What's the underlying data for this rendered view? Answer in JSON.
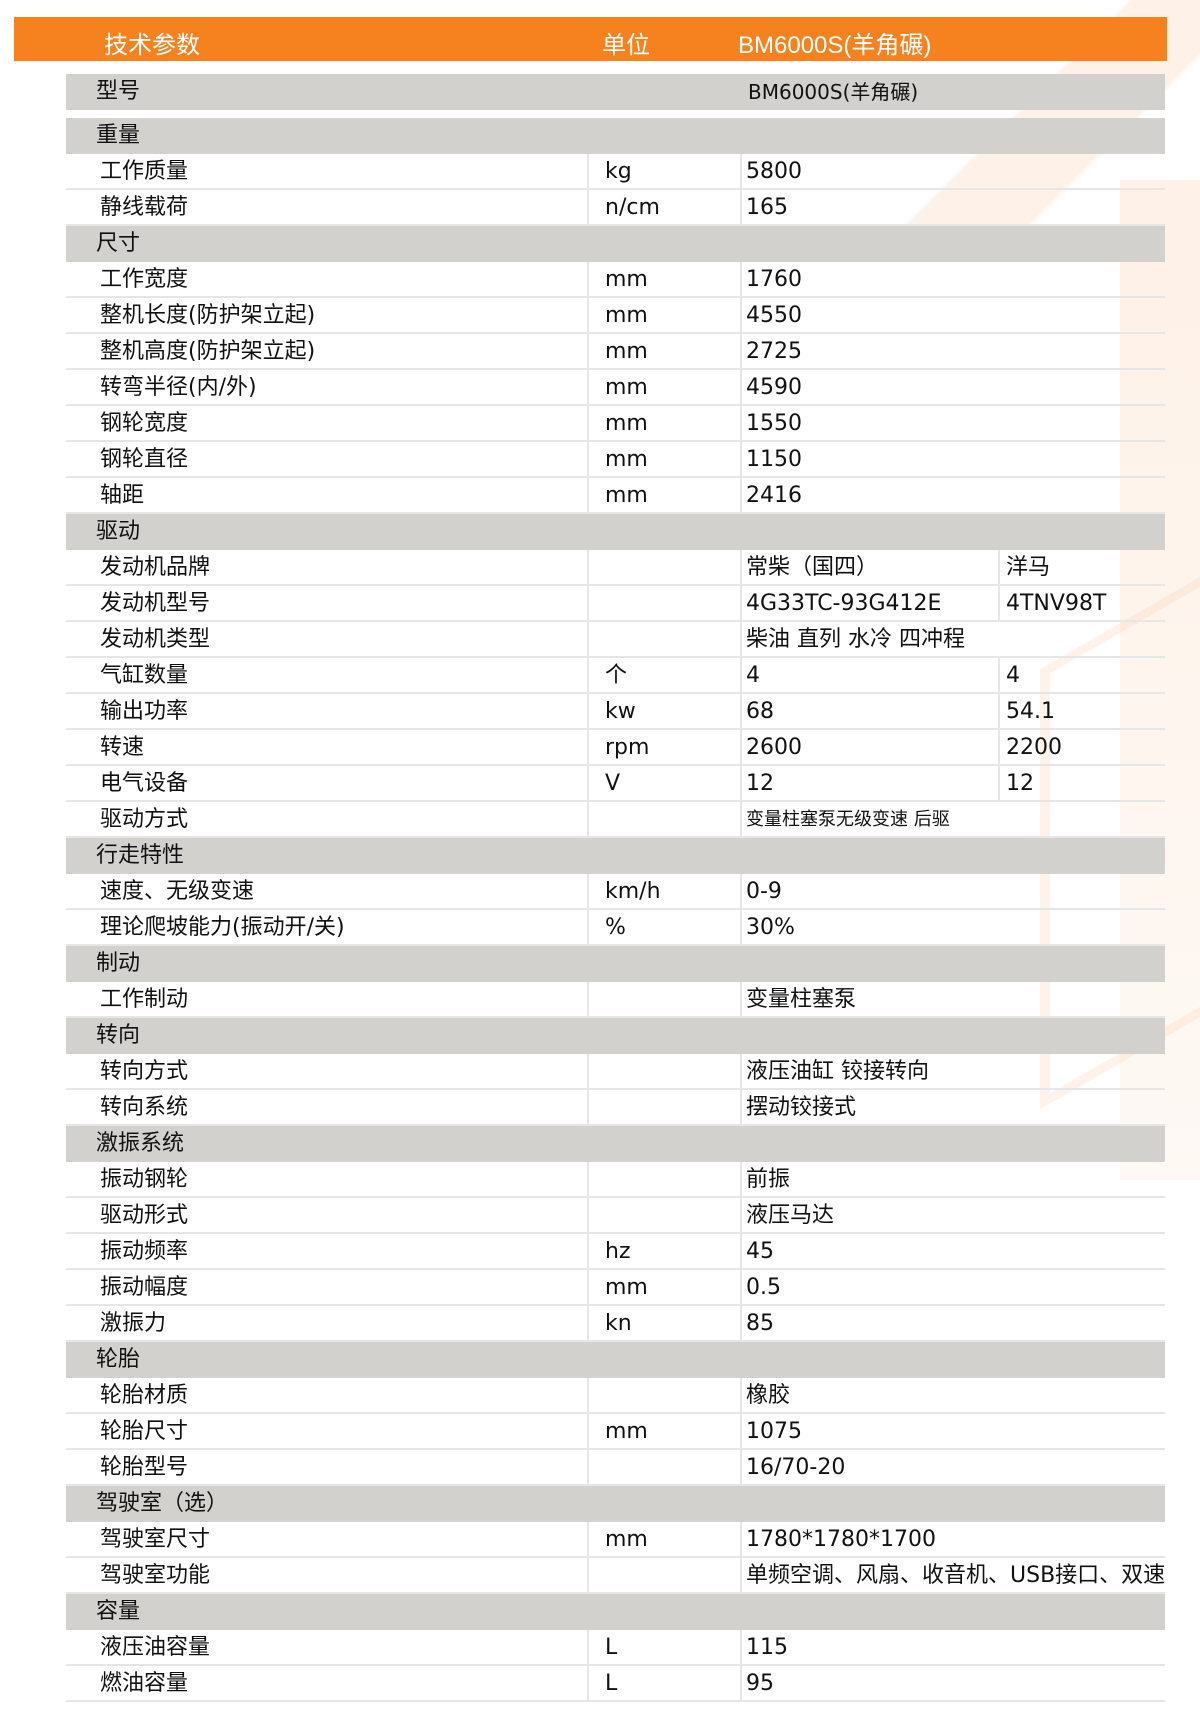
{
  "header": {
    "param": "技术参数",
    "unit": "单位",
    "model": "BM6000S(羊角碾)"
  },
  "model_row": {
    "label": "型号",
    "value": "BM6000S(羊角碾)"
  },
  "sections": [
    {
      "title": "重量",
      "rows": [
        [
          "工作质量",
          "kg",
          "5800"
        ],
        [
          "静线载荷",
          "n/cm",
          "165"
        ]
      ]
    },
    {
      "title": "尺寸",
      "rows": [
        [
          "工作宽度",
          "mm",
          "1760"
        ],
        [
          "整机长度(防护架立起)",
          "mm",
          "4550"
        ],
        [
          "整机高度(防护架立起)",
          "mm",
          "2725"
        ],
        [
          "转弯半径(内/外)",
          "mm",
          "4590"
        ],
        [
          "钢轮宽度",
          "mm",
          "1550"
        ],
        [
          "钢轮直径",
          "mm",
          "1150"
        ],
        [
          "轴距",
          "mm",
          "2416"
        ]
      ]
    },
    {
      "title": "驱动",
      "rows": [
        [
          "发动机品牌",
          "",
          "常柴（国四）",
          "洋马"
        ],
        [
          "发动机型号",
          "",
          "4G33TC-93G412E",
          "4TNV98T"
        ],
        [
          "发动机类型",
          "",
          "柴油 直列 水冷 四冲程"
        ],
        [
          "气缸数量",
          "个",
          "4",
          "4"
        ],
        [
          "输出功率",
          "kw",
          "68",
          "54.1"
        ],
        [
          "转速",
          "rpm",
          "2600",
          "2200"
        ],
        [
          "电气设备",
          "V",
          "12",
          "12"
        ],
        [
          "驱动方式",
          "",
          "变量柱塞泵无级变速  后驱"
        ]
      ]
    },
    {
      "title": "行走特性",
      "rows": [
        [
          "速度、无级变速",
          "km/h",
          "0-9"
        ],
        [
          "理论爬坡能力(振动开/关)",
          "%",
          "30%"
        ]
      ]
    },
    {
      "title": "制动",
      "rows": [
        [
          "工作制动",
          "",
          "变量柱塞泵"
        ]
      ]
    },
    {
      "title": "转向",
      "rows": [
        [
          "转向方式",
          "",
          "液压油缸 铰接转向"
        ],
        [
          "转向系统",
          "",
          "摆动铰接式"
        ]
      ]
    },
    {
      "title": "激振系统",
      "rows": [
        [
          "振动钢轮",
          "",
          "前振"
        ],
        [
          "驱动形式",
          "",
          "液压马达"
        ],
        [
          "振动频率",
          "hz",
          "45"
        ],
        [
          "振动幅度",
          "mm",
          "0.5"
        ],
        [
          "激振力",
          "kn",
          "85"
        ]
      ]
    },
    {
      "title": "轮胎",
      "rows": [
        [
          "轮胎材质",
          "",
          "橡胶"
        ],
        [
          "轮胎尺寸",
          "mm",
          "1075"
        ],
        [
          "轮胎型号",
          "",
          "16/70-20"
        ]
      ]
    },
    {
      "title": "驾驶室（选）",
      "rows": [
        [
          "驾驶室尺寸",
          "mm",
          "1780*1780*1700"
        ],
        [
          "驾驶室功能",
          "",
          "单频空调、风扇、收音机、USB接口、双速"
        ]
      ]
    },
    {
      "title": "容量",
      "rows": [
        [
          "液压油容量",
          "L",
          "115"
        ],
        [
          "燃油容量",
          "L",
          "95"
        ]
      ]
    }
  ],
  "colors": {
    "header_bar": "#f5821f",
    "section_bg": "#d2d1cd"
  }
}
